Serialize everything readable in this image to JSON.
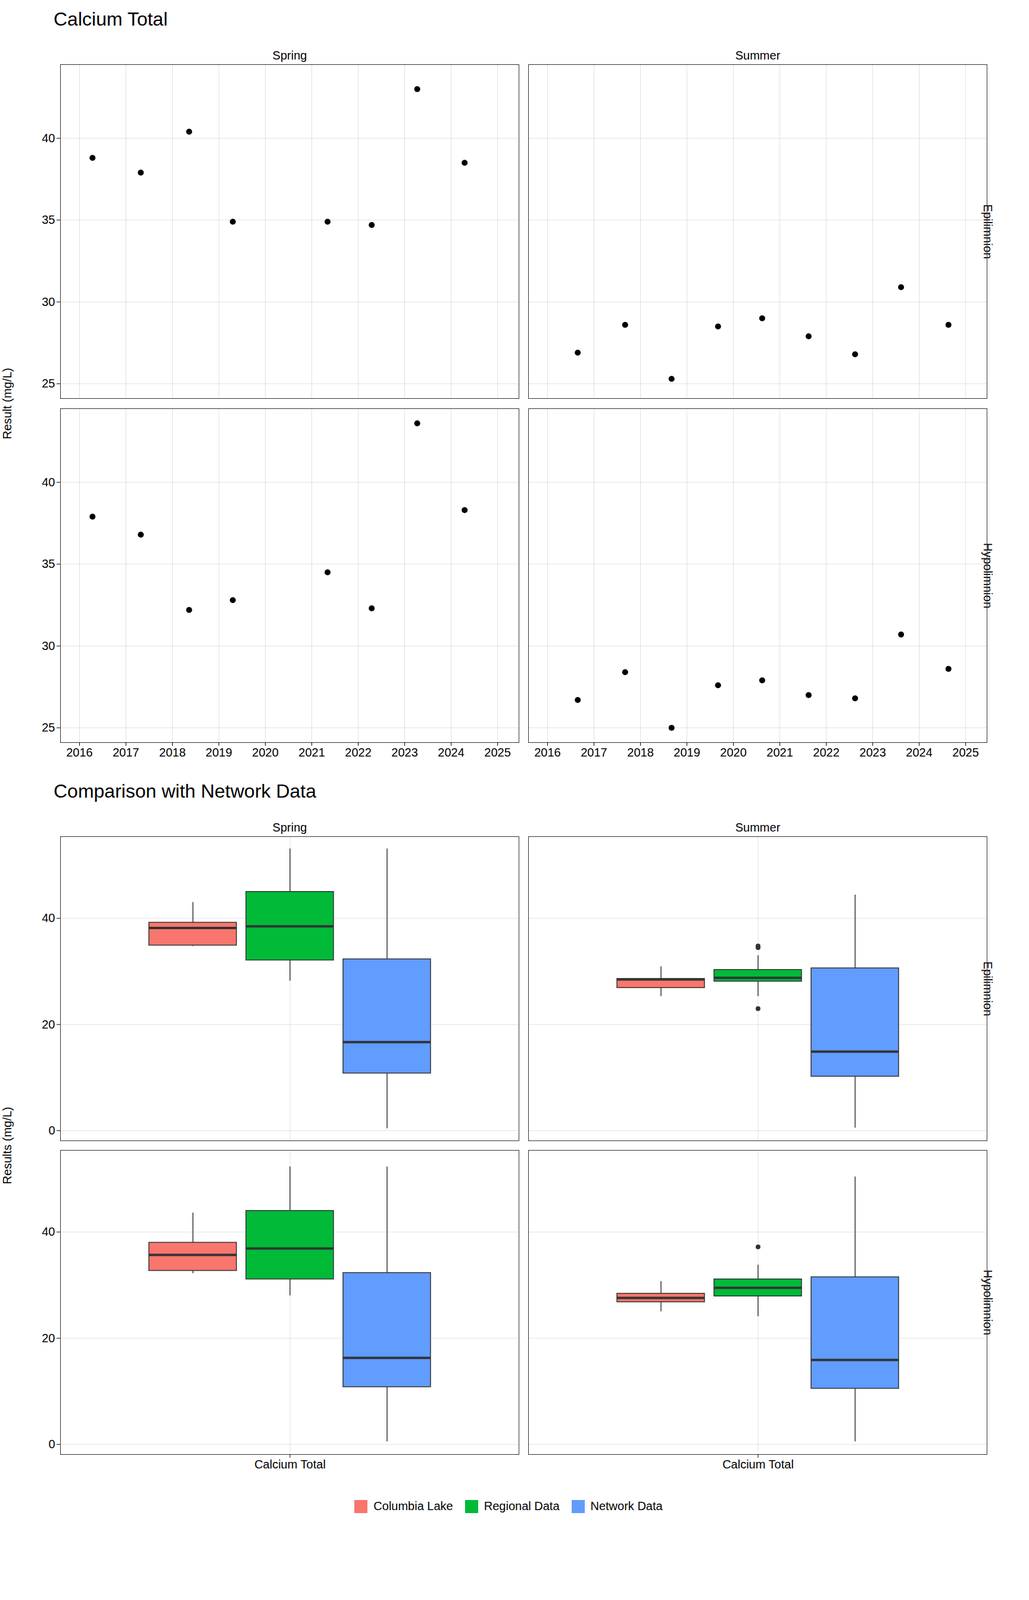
{
  "chart_data": [
    {
      "type": "scatter",
      "title": "Calcium Total",
      "ylabel": "Result (mg/L)",
      "columns": [
        "Spring",
        "Summer"
      ],
      "rows": [
        "Epilimnion",
        "Hypolimnion"
      ],
      "xlim": [
        2015.59,
        2025.46
      ],
      "xticks": [
        2016,
        2017,
        2018,
        2019,
        2020,
        2021,
        2022,
        2023,
        2024,
        2025
      ],
      "ylim": [
        24.1,
        44.5
      ],
      "yticks": [
        25,
        30,
        35,
        40
      ],
      "grid": true,
      "color": "#000000",
      "panels": [
        {
          "column": "Spring",
          "row": "Epilimnion",
          "x": [
            2016.28,
            2017.32,
            2018.36,
            2019.3,
            2021.34,
            2022.29,
            2023.27,
            2024.29
          ],
          "values": [
            38.8,
            37.9,
            40.4,
            34.9,
            34.9,
            34.7,
            43.0,
            38.5
          ]
        },
        {
          "column": "Spring",
          "row": "Hypolimnion",
          "x": [
            2016.28,
            2017.32,
            2018.36,
            2019.3,
            2021.34,
            2022.29,
            2023.27,
            2024.29
          ],
          "values": [
            37.9,
            36.8,
            32.2,
            32.8,
            34.5,
            32.3,
            43.6,
            38.3
          ]
        },
        {
          "column": "Summer",
          "row": "Epilimnion",
          "x": [
            2016.65,
            2017.67,
            2018.67,
            2019.67,
            2020.62,
            2021.62,
            2022.62,
            2023.61,
            2024.63
          ],
          "values": [
            26.9,
            28.6,
            25.3,
            28.5,
            29.0,
            27.9,
            26.8,
            30.9,
            28.6
          ]
        },
        {
          "column": "Summer",
          "row": "Hypolimnion",
          "x": [
            2016.65,
            2017.67,
            2018.67,
            2019.67,
            2020.62,
            2021.62,
            2022.62,
            2023.61,
            2024.63
          ],
          "values": [
            26.7,
            28.4,
            25.0,
            27.6,
            27.9,
            27.0,
            26.8,
            30.7,
            28.6
          ]
        }
      ]
    },
    {
      "type": "boxplot",
      "title": "Comparison with Network Data",
      "ylabel": "Results (mg/L)",
      "categories": [
        "Calcium Total"
      ],
      "columns": [
        "Spring",
        "Summer"
      ],
      "rows": [
        "Epilimnion",
        "Hypolimnion"
      ],
      "ylim": [
        -1.9,
        55.4
      ],
      "yticks": [
        0,
        20,
        40
      ],
      "grid": true,
      "legend": "bottom",
      "series": [
        {
          "name": "Columbia Lake",
          "color": "#F8766D"
        },
        {
          "name": "Regional Data",
          "color": "#00BA38"
        },
        {
          "name": "Network Data",
          "color": "#619CFF"
        }
      ],
      "panels": [
        {
          "column": "Spring",
          "row": "Epilimnion",
          "boxes": [
            {
              "series": "Columbia Lake",
              "min": 34.7,
              "q1": 34.9,
              "median": 38.2,
              "q3": 39.2,
              "max": 43.0,
              "outliers": []
            },
            {
              "series": "Regional Data",
              "min": 28.2,
              "q1": 32.1,
              "median": 38.5,
              "q3": 45.0,
              "max": 53.1,
              "outliers": []
            },
            {
              "series": "Network Data",
              "min": 0.4,
              "q1": 10.8,
              "median": 16.7,
              "q3": 32.3,
              "max": 53.1,
              "outliers": []
            }
          ]
        },
        {
          "column": "Summer",
          "row": "Epilimnion",
          "boxes": [
            {
              "series": "Columbia Lake",
              "min": 25.3,
              "q1": 26.9,
              "median": 28.5,
              "q3": 28.6,
              "max": 30.9,
              "outliers": []
            },
            {
              "series": "Regional Data",
              "min": 25.3,
              "q1": 28.1,
              "median": 28.8,
              "q3": 30.3,
              "max": 33.0,
              "outliers": [
                34.5,
                34.8,
                23.0
              ]
            },
            {
              "series": "Network Data",
              "min": 0.5,
              "q1": 10.2,
              "median": 14.9,
              "q3": 30.6,
              "max": 44.4,
              "outliers": []
            }
          ]
        },
        {
          "column": "Spring",
          "row": "Hypolimnion",
          "boxes": [
            {
              "series": "Columbia Lake",
              "min": 32.2,
              "q1": 32.7,
              "median": 35.7,
              "q3": 38.0,
              "max": 43.6,
              "outliers": []
            },
            {
              "series": "Regional Data",
              "min": 28.0,
              "q1": 31.1,
              "median": 36.9,
              "q3": 44.0,
              "max": 52.3,
              "outliers": []
            },
            {
              "series": "Network Data",
              "min": 0.5,
              "q1": 10.8,
              "median": 16.3,
              "q3": 32.3,
              "max": 52.3,
              "outliers": []
            }
          ]
        },
        {
          "column": "Summer",
          "row": "Hypolimnion",
          "boxes": [
            {
              "series": "Columbia Lake",
              "min": 25.0,
              "q1": 26.8,
              "median": 27.6,
              "q3": 28.4,
              "max": 30.7,
              "outliers": []
            },
            {
              "series": "Regional Data",
              "min": 24.1,
              "q1": 27.9,
              "median": 29.5,
              "q3": 31.1,
              "max": 33.8,
              "outliers": [
                37.2
              ]
            },
            {
              "series": "Network Data",
              "min": 0.5,
              "q1": 10.5,
              "median": 15.9,
              "q3": 31.5,
              "max": 50.4,
              "outliers": []
            }
          ]
        }
      ]
    }
  ]
}
